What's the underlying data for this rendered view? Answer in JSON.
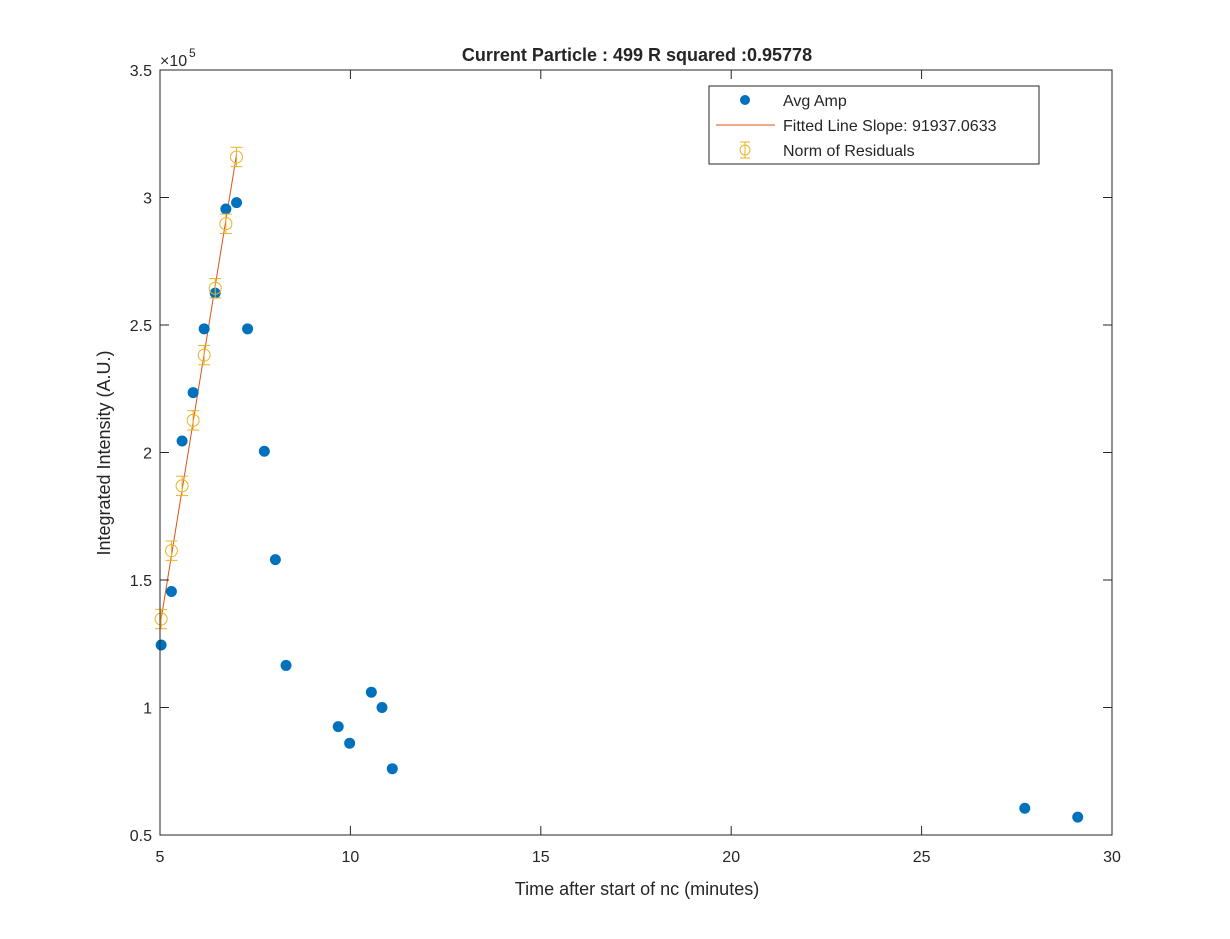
{
  "chart_data": {
    "type": "scatter",
    "title": "Current Particle : 499   R squared :0.95778",
    "xlabel": "Time after start of nc (minutes)",
    "ylabel": "Integrated Intensity (A.U.)",
    "xlim": [
      5,
      30
    ],
    "ylim": [
      50000,
      350000
    ],
    "xticks": [
      5,
      10,
      15,
      20,
      25,
      30
    ],
    "yticks": [
      50000,
      100000,
      150000,
      200000,
      250000,
      300000,
      350000
    ],
    "ytick_labels": [
      "0.5",
      "1",
      "1.5",
      "2",
      "2.5",
      "3",
      "3.5"
    ],
    "y_exponent_base": "×10",
    "y_exponent_power": "5",
    "grid": false,
    "legend_position": "top-right",
    "series": [
      {
        "name": "Avg Amp",
        "kind": "markers",
        "color": "#0072BD",
        "x": [
          5.03,
          5.3,
          5.58,
          5.87,
          6.16,
          6.45,
          6.73,
          7.01,
          7.3,
          7.74,
          8.03,
          8.31,
          9.68,
          9.98,
          10.55,
          10.83,
          11.1,
          27.71,
          29.1
        ],
        "y": [
          124500,
          145500,
          204500,
          223500,
          248500,
          262500,
          295500,
          298000,
          248500,
          200500,
          158000,
          116500,
          92500,
          86000,
          106000,
          100000,
          76000,
          60500,
          57000
        ]
      },
      {
        "name": "Fitted Line Slope: 91937.0633",
        "kind": "line",
        "color": "#D95319",
        "x": [
          5.03,
          7.01
        ],
        "y": [
          134700,
          316900
        ]
      },
      {
        "name": "Norm of Residuals",
        "kind": "errorbar",
        "color": "#EDB120",
        "x": [
          5.03,
          5.3,
          5.58,
          5.87,
          6.16,
          6.45,
          6.73,
          7.01
        ],
        "y": [
          134700,
          161500,
          186900,
          212600,
          238200,
          264400,
          289700,
          315900
        ],
        "err": [
          3800,
          3800,
          3800,
          3800,
          3800,
          3800,
          3800,
          3800
        ]
      }
    ]
  }
}
